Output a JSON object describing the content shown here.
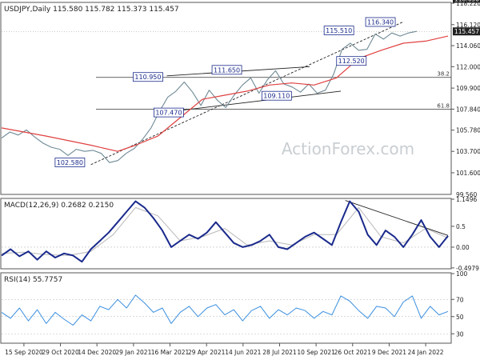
{
  "chart_data": [
    {
      "panel": "price",
      "type": "line",
      "header": "USDJPY,Daily  115.580 115.782 115.373 115.457",
      "ylim": [
        99.56,
        118.22
      ],
      "y_ticks": [
        101.6,
        103.7,
        105.78,
        107.84,
        109.9,
        112.0,
        114.06,
        116.12,
        118.22
      ],
      "y_tick_labels": [
        "101.600",
        "103.700",
        "105.780",
        "107.840",
        "109.900",
        "112.000",
        "114.060",
        "116.120",
        "118.220"
      ],
      "bottom_label": "99.560",
      "levels": [
        {
          "value": 118.65,
          "label": "118.650",
          "style": "dotted"
        },
        {
          "value": 115.457,
          "label": "115.457",
          "style": "current"
        },
        {
          "value": 110.95,
          "label": "38.2",
          "style": "fib"
        },
        {
          "value": 107.84,
          "label": "61.8",
          "style": "fib"
        }
      ],
      "annotations": [
        {
          "label": "102.580",
          "x": 0.122,
          "y": 102.58
        },
        {
          "label": "110.950",
          "x": 0.31,
          "y": 110.95
        },
        {
          "label": "107.470",
          "x": 0.36,
          "y": 107.47
        },
        {
          "label": "111.650",
          "x": 0.5,
          "y": 111.65
        },
        {
          "label": "109.110",
          "x": 0.62,
          "y": 109.11
        },
        {
          "label": "115.510",
          "x": 0.77,
          "y": 115.51
        },
        {
          "label": "112.520",
          "x": 0.8,
          "y": 112.52
        },
        {
          "label": "116.340",
          "x": 0.87,
          "y": 116.34
        }
      ],
      "series": [
        {
          "role": "price",
          "color": "#6f8a96",
          "x": [
            0,
            0.02,
            0.04,
            0.06,
            0.08,
            0.1,
            0.12,
            0.14,
            0.16,
            0.18,
            0.2,
            0.22,
            0.24,
            0.26,
            0.28,
            0.3,
            0.32,
            0.34,
            0.36,
            0.38,
            0.4,
            0.42,
            0.44,
            0.46,
            0.48,
            0.5,
            0.52,
            0.54,
            0.56,
            0.58,
            0.6,
            0.62,
            0.64,
            0.66,
            0.68,
            0.7,
            0.72,
            0.74,
            0.76,
            0.78,
            0.8,
            0.82,
            0.84,
            0.86,
            0.88,
            0.9,
            0.92,
            0.94,
            0.96,
            0.98,
            1.0
          ],
          "values": [
            105.0,
            105.6,
            105.3,
            105.8,
            105.1,
            104.5,
            104.1,
            103.9,
            103.3,
            103.9,
            103.7,
            103.8,
            103.5,
            102.6,
            102.8,
            103.5,
            104.0,
            104.9,
            106.0,
            107.6,
            109.0,
            109.6,
            110.5,
            109.5,
            108.2,
            109.7,
            108.7,
            108.0,
            109.2,
            110.2,
            110.9,
            109.4,
            110.7,
            111.6,
            110.3,
            110.0,
            109.5,
            110.3,
            109.4,
            109.7,
            111.3,
            113.7,
            114.3,
            113.6,
            113.7,
            115.2,
            114.7,
            115.3,
            115.0,
            115.3,
            115.46
          ],
          "x_scale": [
            0.0,
            0.93
          ]
        },
        {
          "role": "moving-average",
          "color": "#e04040",
          "x": [
            0,
            0.1,
            0.2,
            0.26,
            0.3,
            0.35,
            0.4,
            0.45,
            0.5,
            0.55,
            0.6,
            0.65,
            0.7,
            0.75,
            0.8,
            0.85,
            0.9,
            0.95,
            1.0
          ],
          "values": [
            106.0,
            105.2,
            104.3,
            103.7,
            104.3,
            105.2,
            107.0,
            108.8,
            109.2,
            109.6,
            110.2,
            110.4,
            110.2,
            110.9,
            112.8,
            113.6,
            114.3,
            114.5,
            115.0
          ]
        }
      ]
    },
    {
      "panel": "macd",
      "type": "line",
      "header": "MACD(12,26,9) 0.2682 0.2150",
      "ylim": [
        -0.5,
        1.15
      ],
      "y_ticks": [
        1.1496,
        0.5,
        0.0,
        -0.4979
      ],
      "y_tick_labels": [
        "1.1496",
        "0.5",
        "0.00",
        "-0.4979"
      ],
      "series": [
        {
          "name": "MACD",
          "color": "#1a2a8c",
          "x": [
            0,
            0.02,
            0.04,
            0.06,
            0.08,
            0.1,
            0.12,
            0.14,
            0.16,
            0.18,
            0.2,
            0.22,
            0.24,
            0.26,
            0.28,
            0.3,
            0.32,
            0.34,
            0.36,
            0.38,
            0.4,
            0.42,
            0.44,
            0.46,
            0.48,
            0.5,
            0.52,
            0.54,
            0.56,
            0.58,
            0.6,
            0.62,
            0.64,
            0.66,
            0.68,
            0.7,
            0.72,
            0.74,
            0.76,
            0.78,
            0.8,
            0.82,
            0.84,
            0.86,
            0.88,
            0.9,
            0.92,
            0.94,
            0.96,
            0.98,
            1.0
          ],
          "values": [
            -0.2,
            -0.05,
            -0.22,
            -0.1,
            -0.3,
            -0.1,
            -0.25,
            -0.15,
            -0.2,
            -0.35,
            -0.05,
            0.15,
            0.35,
            0.6,
            0.85,
            1.1,
            0.95,
            0.7,
            0.4,
            0.0,
            0.15,
            0.3,
            0.2,
            0.35,
            0.6,
            0.35,
            0.1,
            0.0,
            0.05,
            0.15,
            0.3,
            0.0,
            -0.05,
            0.1,
            0.25,
            0.35,
            0.2,
            0.05,
            0.6,
            1.1,
            0.85,
            0.3,
            0.05,
            0.4,
            0.25,
            0.0,
            0.3,
            0.65,
            0.25,
            0.0,
            0.27
          ]
        },
        {
          "name": "Signal",
          "color": "#b8b8b8",
          "x": [
            0,
            0.05,
            0.1,
            0.15,
            0.2,
            0.25,
            0.3,
            0.35,
            0.4,
            0.45,
            0.5,
            0.55,
            0.6,
            0.65,
            0.7,
            0.75,
            0.8,
            0.85,
            0.9,
            0.95,
            1.0
          ],
          "values": [
            -0.15,
            -0.12,
            -0.18,
            -0.2,
            -0.1,
            0.3,
            0.95,
            0.75,
            0.15,
            0.25,
            0.45,
            0.05,
            0.15,
            0.05,
            0.3,
            0.3,
            0.95,
            0.25,
            0.1,
            0.45,
            0.22
          ]
        }
      ]
    },
    {
      "panel": "rsi",
      "type": "line",
      "header": "RSI(14) 55.7757",
      "ylim": [
        20,
        100
      ],
      "y_ticks": [
        100,
        70,
        50,
        30
      ],
      "y_tick_labels": [
        "100",
        "70",
        "50",
        "30"
      ],
      "series": [
        {
          "name": "RSI",
          "color": "#3a8fe0",
          "x": [
            0,
            0.02,
            0.04,
            0.06,
            0.08,
            0.1,
            0.12,
            0.14,
            0.16,
            0.18,
            0.2,
            0.22,
            0.24,
            0.26,
            0.28,
            0.3,
            0.32,
            0.34,
            0.36,
            0.38,
            0.4,
            0.42,
            0.44,
            0.46,
            0.48,
            0.5,
            0.52,
            0.54,
            0.56,
            0.58,
            0.6,
            0.62,
            0.64,
            0.66,
            0.68,
            0.7,
            0.72,
            0.74,
            0.76,
            0.78,
            0.8,
            0.82,
            0.84,
            0.86,
            0.88,
            0.9,
            0.92,
            0.94,
            0.96,
            0.98,
            1.0
          ],
          "values": [
            55,
            48,
            60,
            45,
            58,
            42,
            55,
            47,
            40,
            52,
            45,
            62,
            58,
            70,
            60,
            75,
            66,
            55,
            60,
            42,
            55,
            62,
            50,
            60,
            64,
            52,
            58,
            45,
            57,
            62,
            48,
            58,
            52,
            60,
            57,
            48,
            56,
            52,
            74,
            68,
            57,
            48,
            62,
            60,
            50,
            67,
            74,
            48,
            62,
            52,
            56
          ]
        }
      ]
    }
  ],
  "x_axis": {
    "labels": [
      "15 Sep 2020",
      "29 Oct 2020",
      "14 Dec 2020",
      "29 Jan 2021",
      "16 Mar 2021",
      "29 Apr 2021",
      "14 Jun 2021",
      "28 Jul 2021",
      "10 Sep 2021",
      "26 Oct 2021",
      "9 Dec 2021",
      "24 Jan 2022"
    ]
  },
  "watermark": "ActionForex.com",
  "colors": {
    "background": "#ffffff",
    "price_line": "#6f8a96",
    "ma_line": "#e04040",
    "macd_line": "#1a2a8c",
    "rsi_line": "#3a8fe0",
    "annotation_box": "#1a2a8c",
    "current_label_bg": "#222222"
  }
}
